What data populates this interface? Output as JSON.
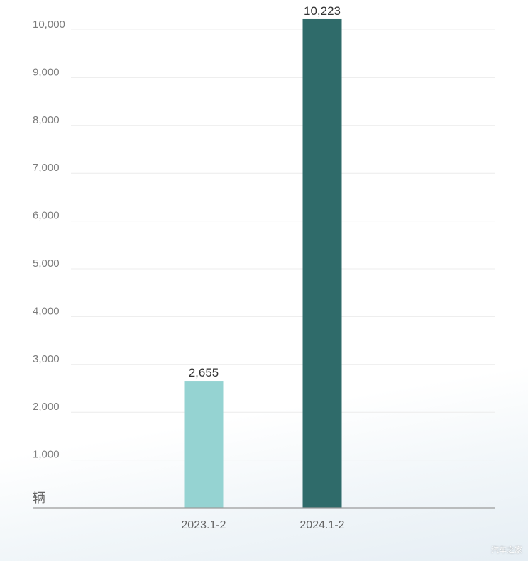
{
  "chart_data": {
    "type": "bar",
    "categories": [
      "2023.1-2",
      "2024.1-2"
    ],
    "values": [
      2655,
      10223
    ],
    "value_labels": [
      "2,655",
      "10,223"
    ],
    "bar_colors": [
      "#95d3d2",
      "#2f6b6a"
    ],
    "unit": "辆",
    "ylim": [
      0,
      10000
    ],
    "yticks": [
      1000,
      2000,
      3000,
      4000,
      5000,
      6000,
      7000,
      8000,
      9000,
      10000
    ],
    "ytick_labels": [
      "1,000",
      "2,000",
      "3,000",
      "4,000",
      "5,000",
      "6,000",
      "7,000",
      "8,000",
      "9,000",
      "10,000"
    ],
    "grid": true,
    "title": "",
    "xlabel": "",
    "ylabel": ""
  },
  "watermark": "汽车之家"
}
